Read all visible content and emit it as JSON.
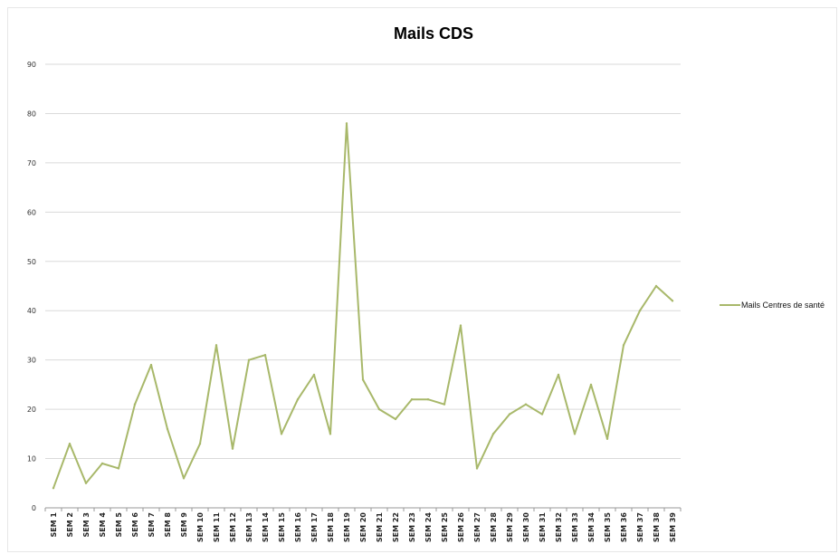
{
  "chart_data": {
    "type": "line",
    "title": "Mails CDS",
    "xlabel": "",
    "ylabel": "",
    "ylim": [
      0,
      90
    ],
    "yticks": [
      0,
      10,
      20,
      30,
      40,
      50,
      60,
      70,
      80,
      90
    ],
    "grid": true,
    "legend_position": "right",
    "categories": [
      "SEM 1",
      "SEM 2",
      "SEM 3",
      "SEM 4",
      "SEM 5",
      "SEM 6",
      "SEM 7",
      "SEM 8",
      "SEM 9",
      "SEM 10",
      "SEM 11",
      "SEM 12",
      "SEM 13",
      "SEM 14",
      "SEM 15",
      "SEM 16",
      "SEM 17",
      "SEM 18",
      "SEM 19",
      "SEM 20",
      "SEM 21",
      "SEM 22",
      "SEM 23",
      "SEM 24",
      "SEM 25",
      "SEM 26",
      "SEM 27",
      "SEM 28",
      "SEM 29",
      "SEM 30",
      "SEM 31",
      "SEM 32",
      "SEM 33",
      "SEM 34",
      "SEM 35",
      "SEM 36",
      "SEM 37",
      "SEM 38",
      "SEM 39"
    ],
    "series": [
      {
        "name": "Mails Centres de santé",
        "color": "#a8b86a",
        "values": [
          4,
          13,
          5,
          9,
          8,
          21,
          29,
          16,
          6,
          13,
          33,
          12,
          30,
          31,
          15,
          22,
          27,
          15,
          78,
          26,
          20,
          18,
          22,
          22,
          21,
          37,
          8,
          15,
          19,
          21,
          19,
          27,
          15,
          25,
          14,
          33,
          40,
          45,
          42
        ]
      }
    ]
  },
  "colors": {
    "gridline": "#dadada",
    "axis": "#999999"
  }
}
